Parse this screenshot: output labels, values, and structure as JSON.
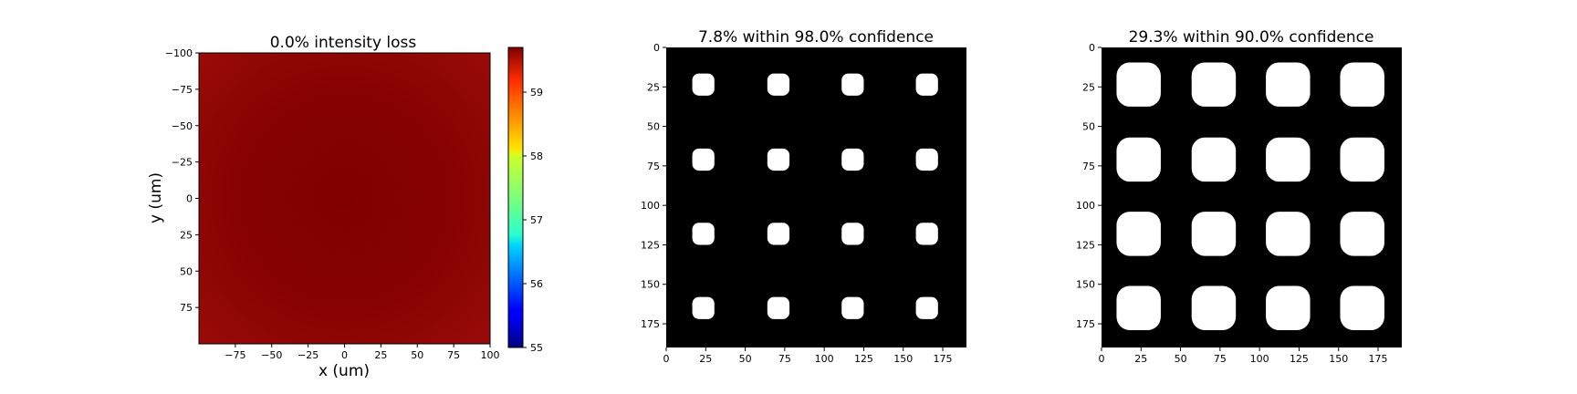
{
  "chart_data": [
    {
      "type": "heatmap",
      "title": "0.0% intensity loss",
      "xlabel": "x (um)",
      "ylabel": "y (um)",
      "xlim": [
        -100,
        100
      ],
      "ylim": [
        -100,
        100
      ],
      "xticks": [
        -75,
        -50,
        -25,
        0,
        25,
        50,
        75,
        100
      ],
      "xtick_labels": [
        "−75",
        "−50",
        "−25",
        "0",
        "25",
        "50",
        "75",
        "100"
      ],
      "yticks": [
        -100,
        -75,
        -50,
        -25,
        0,
        25,
        50,
        75
      ],
      "ytick_labels": [
        "−100",
        "−75",
        "−50",
        "−25",
        "0",
        "25",
        "50",
        "75"
      ],
      "colormap": "jet",
      "colorbar": {
        "min": 55,
        "max": 59.7,
        "ticks": [
          55,
          56,
          57,
          58,
          59
        ],
        "tick_labels": [
          "55",
          "56",
          "57",
          "58",
          "59"
        ]
      },
      "field": {
        "center_value": 59.7,
        "edge_value": 59.45,
        "center_color": "#800000",
        "edge_color": "#9a0c08",
        "description_values": "near-uniform high intensity with slightly darker center"
      }
    },
    {
      "type": "heatmap",
      "title": "7.8% within 98.0% confidence",
      "xlim": [
        0,
        190
      ],
      "ylim": [
        0,
        190
      ],
      "xticks": [
        0,
        25,
        50,
        75,
        100,
        125,
        150,
        175
      ],
      "xtick_labels": [
        "0",
        "25",
        "50",
        "75",
        "100",
        "125",
        "150",
        "175"
      ],
      "yticks": [
        0,
        25,
        50,
        75,
        100,
        125,
        150,
        175
      ],
      "ytick_labels": [
        "0",
        "25",
        "50",
        "75",
        "100",
        "125",
        "150",
        "175"
      ],
      "background_color": "#000000",
      "spot_color": "#ffffff",
      "spot_centers_x": [
        23.5,
        71,
        118,
        165
      ],
      "spot_centers_y": [
        23.5,
        71,
        118,
        165
      ],
      "spot_size": 14
    },
    {
      "type": "heatmap",
      "title": "29.3% within 90.0% confidence",
      "xlim": [
        0,
        190
      ],
      "ylim": [
        0,
        190
      ],
      "xticks": [
        0,
        25,
        50,
        75,
        100,
        125,
        150,
        175
      ],
      "xtick_labels": [
        "0",
        "25",
        "50",
        "75",
        "100",
        "125",
        "150",
        "175"
      ],
      "yticks": [
        0,
        25,
        50,
        75,
        100,
        125,
        150,
        175
      ],
      "ytick_labels": [
        "0",
        "25",
        "50",
        "75",
        "100",
        "125",
        "150",
        "175"
      ],
      "background_color": "#000000",
      "spot_color": "#ffffff",
      "spot_centers_x": [
        23.5,
        71,
        118,
        165
      ],
      "spot_centers_y": [
        23.5,
        71,
        118,
        165
      ],
      "spot_size": 28
    }
  ]
}
